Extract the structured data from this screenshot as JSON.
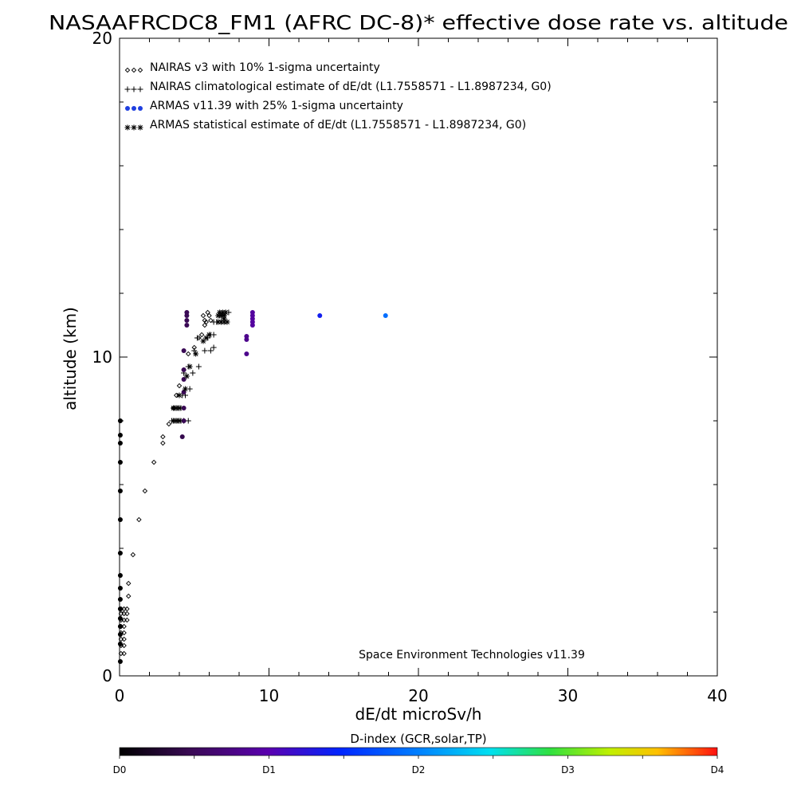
{
  "chart_data": {
    "type": "scatter",
    "title": "NASAAFRCDC8_FM1 (AFRC DC-8)* effective dose rate vs. altitude",
    "xlabel": "dE/dt microSv/h",
    "ylabel": "altitude (km)",
    "xlim": [
      0,
      40
    ],
    "ylim": [
      0,
      20
    ],
    "x_ticks": [
      "0",
      "10",
      "20",
      "30",
      "40"
    ],
    "y_ticks": [
      "0",
      "10",
      "20"
    ],
    "grid": false,
    "legend_position": "top-left",
    "credit": "Space Environment Technologies v11.39",
    "colorbar": {
      "label": "D-index (GCR,solar,TP)",
      "ticks": [
        {
          "label": "D0",
          "value": 0
        },
        {
          "label": "D1",
          "value": 1
        },
        {
          "label": "D2",
          "value": 2
        },
        {
          "label": "D3",
          "value": 3
        },
        {
          "label": "D4",
          "value": 4
        }
      ]
    },
    "series": [
      {
        "name": "NAIRAS v3 with 10% 1-sigma uncertainty",
        "marker": "diamond",
        "color": "#000000",
        "points": [
          [
            0.1,
            0.7
          ],
          [
            0.3,
            0.7
          ],
          [
            0.1,
            0.95
          ],
          [
            0.3,
            0.95
          ],
          [
            0.1,
            1.15
          ],
          [
            0.3,
            1.15
          ],
          [
            0.1,
            1.35
          ],
          [
            0.3,
            1.35
          ],
          [
            0.1,
            1.55
          ],
          [
            0.3,
            1.55
          ],
          [
            0.1,
            1.75
          ],
          [
            0.3,
            1.75
          ],
          [
            0.5,
            1.75
          ],
          [
            0.1,
            1.95
          ],
          [
            0.3,
            1.95
          ],
          [
            0.5,
            1.95
          ],
          [
            0.1,
            2.1
          ],
          [
            0.3,
            2.1
          ],
          [
            0.5,
            2.1
          ],
          [
            0.6,
            2.5
          ],
          [
            0.6,
            2.9
          ],
          [
            0.9,
            3.8
          ],
          [
            1.3,
            4.9
          ],
          [
            1.7,
            5.8
          ],
          [
            2.3,
            6.7
          ],
          [
            2.9,
            7.3
          ],
          [
            2.9,
            7.5
          ],
          [
            3.3,
            7.9
          ],
          [
            3.6,
            8.4
          ],
          [
            3.8,
            8.8
          ],
          [
            4.0,
            9.1
          ],
          [
            4.3,
            9.6
          ],
          [
            4.6,
            10.1
          ],
          [
            5.0,
            10.3
          ],
          [
            5.3,
            10.6
          ],
          [
            5.5,
            10.7
          ],
          [
            5.7,
            11.0
          ],
          [
            5.8,
            11.1
          ],
          [
            6.0,
            11.3
          ],
          [
            5.9,
            11.4
          ],
          [
            5.6,
            11.3
          ],
          [
            5.7,
            11.15
          ],
          [
            6.1,
            11.15
          ]
        ]
      },
      {
        "name": "NAIRAS climatological estimate of dE/dt (L1.7558571 - L1.8987234, G0)",
        "marker": "plus",
        "color": "#000000",
        "points": [
          [
            3.5,
            8.0
          ],
          [
            3.7,
            8.0
          ],
          [
            3.9,
            8.0
          ],
          [
            4.1,
            8.0
          ],
          [
            4.3,
            8.0
          ],
          [
            4.6,
            8.0
          ],
          [
            3.7,
            8.4
          ],
          [
            3.9,
            8.4
          ],
          [
            4.1,
            8.4
          ],
          [
            4.0,
            8.8
          ],
          [
            4.2,
            8.8
          ],
          [
            4.4,
            8.8
          ],
          [
            4.7,
            9.0
          ],
          [
            4.3,
            9.5
          ],
          [
            4.9,
            9.5
          ],
          [
            4.6,
            9.7
          ],
          [
            5.3,
            9.7
          ],
          [
            5.0,
            10.2
          ],
          [
            5.7,
            10.2
          ],
          [
            6.1,
            10.2
          ],
          [
            6.3,
            10.3
          ],
          [
            5.2,
            10.6
          ],
          [
            5.9,
            10.6
          ],
          [
            6.1,
            10.7
          ],
          [
            6.3,
            10.7
          ],
          [
            6.3,
            11.1
          ],
          [
            6.5,
            11.1
          ],
          [
            6.7,
            11.3
          ],
          [
            6.9,
            11.3
          ],
          [
            7.1,
            11.4
          ],
          [
            7.3,
            11.4
          ]
        ]
      },
      {
        "name": "ARMAS v11.39 with 25% 1-sigma uncertainty",
        "marker": "dot",
        "color": "#1f3fe0",
        "points": [
          [
            0.05,
            0.45
          ],
          [
            0.05,
            1.0
          ],
          [
            0.05,
            1.3
          ],
          [
            0.05,
            1.55
          ],
          [
            0.05,
            1.8
          ],
          [
            0.05,
            2.1
          ],
          [
            0.05,
            2.4
          ],
          [
            0.05,
            2.75
          ],
          [
            0.05,
            3.15
          ],
          [
            0.05,
            3.85
          ],
          [
            0.05,
            4.9
          ],
          [
            0.05,
            5.8
          ],
          [
            0.05,
            6.7
          ],
          [
            0.05,
            7.3
          ],
          [
            0.05,
            7.55
          ],
          [
            0.05,
            8.0
          ],
          [
            4.2,
            7.5
          ],
          [
            4.3,
            8.0
          ],
          [
            4.3,
            8.4
          ],
          [
            4.3,
            8.9
          ],
          [
            4.3,
            9.3
          ],
          [
            4.3,
            9.6
          ],
          [
            4.3,
            10.2
          ],
          [
            4.5,
            11.0
          ],
          [
            4.5,
            11.15
          ],
          [
            4.5,
            11.3
          ],
          [
            4.5,
            11.4
          ],
          [
            8.5,
            10.1
          ],
          [
            8.5,
            10.55
          ],
          [
            8.5,
            10.65
          ],
          [
            8.9,
            11.0
          ],
          [
            8.9,
            11.1
          ],
          [
            8.9,
            11.2
          ],
          [
            8.9,
            11.3
          ],
          [
            8.9,
            11.4
          ],
          [
            13.4,
            11.3
          ],
          [
            17.8,
            11.3
          ]
        ],
        "d_index": [
          0,
          0,
          0,
          0,
          0,
          0,
          0,
          0,
          0,
          0,
          0,
          0,
          0,
          0,
          0,
          0,
          0.45,
          0.5,
          0.5,
          0.5,
          0.5,
          0.5,
          0.5,
          0.5,
          0.5,
          0.5,
          0.5,
          0.8,
          0.8,
          0.8,
          0.9,
          0.9,
          0.9,
          0.9,
          0.9,
          1.4,
          1.9
        ]
      },
      {
        "name": "ARMAS statistical estimate of dE/dt (L1.7558571 - L1.8987234, G0)",
        "marker": "asterisk",
        "color": "#000000",
        "points": [
          [
            3.6,
            8.0
          ],
          [
            3.8,
            8.0
          ],
          [
            4.0,
            8.0
          ],
          [
            3.6,
            8.4
          ],
          [
            3.8,
            8.4
          ],
          [
            4.0,
            8.4
          ],
          [
            4.0,
            8.8
          ],
          [
            4.4,
            9.0
          ],
          [
            4.5,
            9.4
          ],
          [
            4.7,
            9.7
          ],
          [
            5.1,
            10.1
          ],
          [
            5.6,
            10.5
          ],
          [
            5.8,
            10.6
          ],
          [
            6.0,
            10.7
          ],
          [
            6.6,
            11.1
          ],
          [
            6.8,
            11.1
          ],
          [
            7.0,
            11.1
          ],
          [
            7.2,
            11.1
          ],
          [
            7.0,
            11.2
          ],
          [
            6.6,
            11.3
          ],
          [
            6.8,
            11.3
          ],
          [
            7.0,
            11.3
          ],
          [
            6.7,
            11.4
          ],
          [
            6.9,
            11.4
          ],
          [
            7.1,
            11.4
          ]
        ]
      }
    ]
  }
}
